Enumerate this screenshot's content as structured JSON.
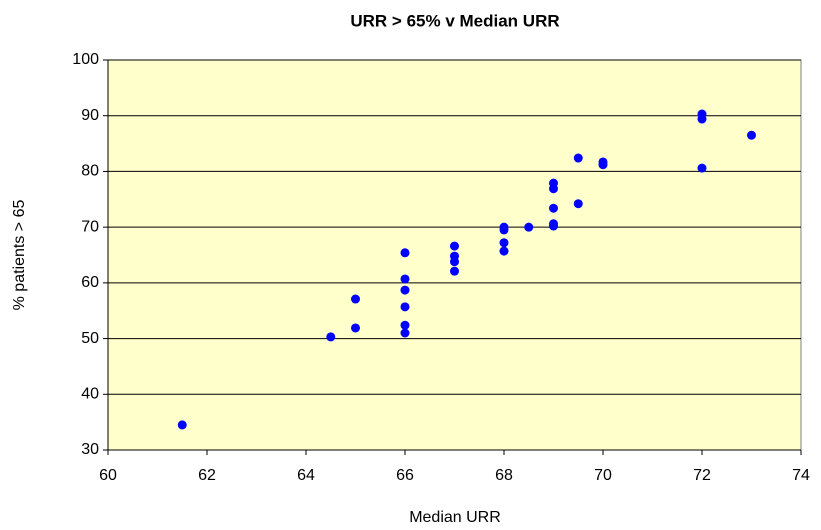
{
  "chart_data": {
    "type": "scatter",
    "title": "URR > 65% v Median URR",
    "x_label": "Median URR",
    "y_label": "% patients > 65",
    "color": "#0000ff",
    "plot_background": "#ffffcc",
    "grid": true,
    "xlim": [
      60,
      74
    ],
    "xticks": [
      60,
      62,
      64,
      66,
      68,
      70,
      72,
      74
    ],
    "ylim": [
      30,
      100
    ],
    "yticks": [
      30,
      40,
      50,
      60,
      70,
      80,
      90,
      100
    ],
    "x": [
      61.5,
      64.5,
      65,
      65,
      66,
      66,
      66,
      66,
      66,
      66,
      67,
      67,
      67,
      67,
      68,
      68,
      68,
      68,
      68.5,
      69,
      69,
      69,
      69,
      69,
      69.5,
      69.5,
      70,
      70,
      72,
      72,
      72,
      73
    ],
    "values": [
      34.5,
      50.3,
      57.1,
      51.9,
      65.4,
      60.7,
      58.7,
      55.7,
      52.4,
      51,
      66.6,
      64.8,
      63.8,
      62.1,
      70,
      69.5,
      67.2,
      65.7,
      70,
      77.9,
      76.9,
      73.4,
      70.6,
      70.2,
      82.4,
      74.2,
      81.7,
      81.2,
      90.3,
      89.4,
      80.6,
      86.5
    ]
  }
}
